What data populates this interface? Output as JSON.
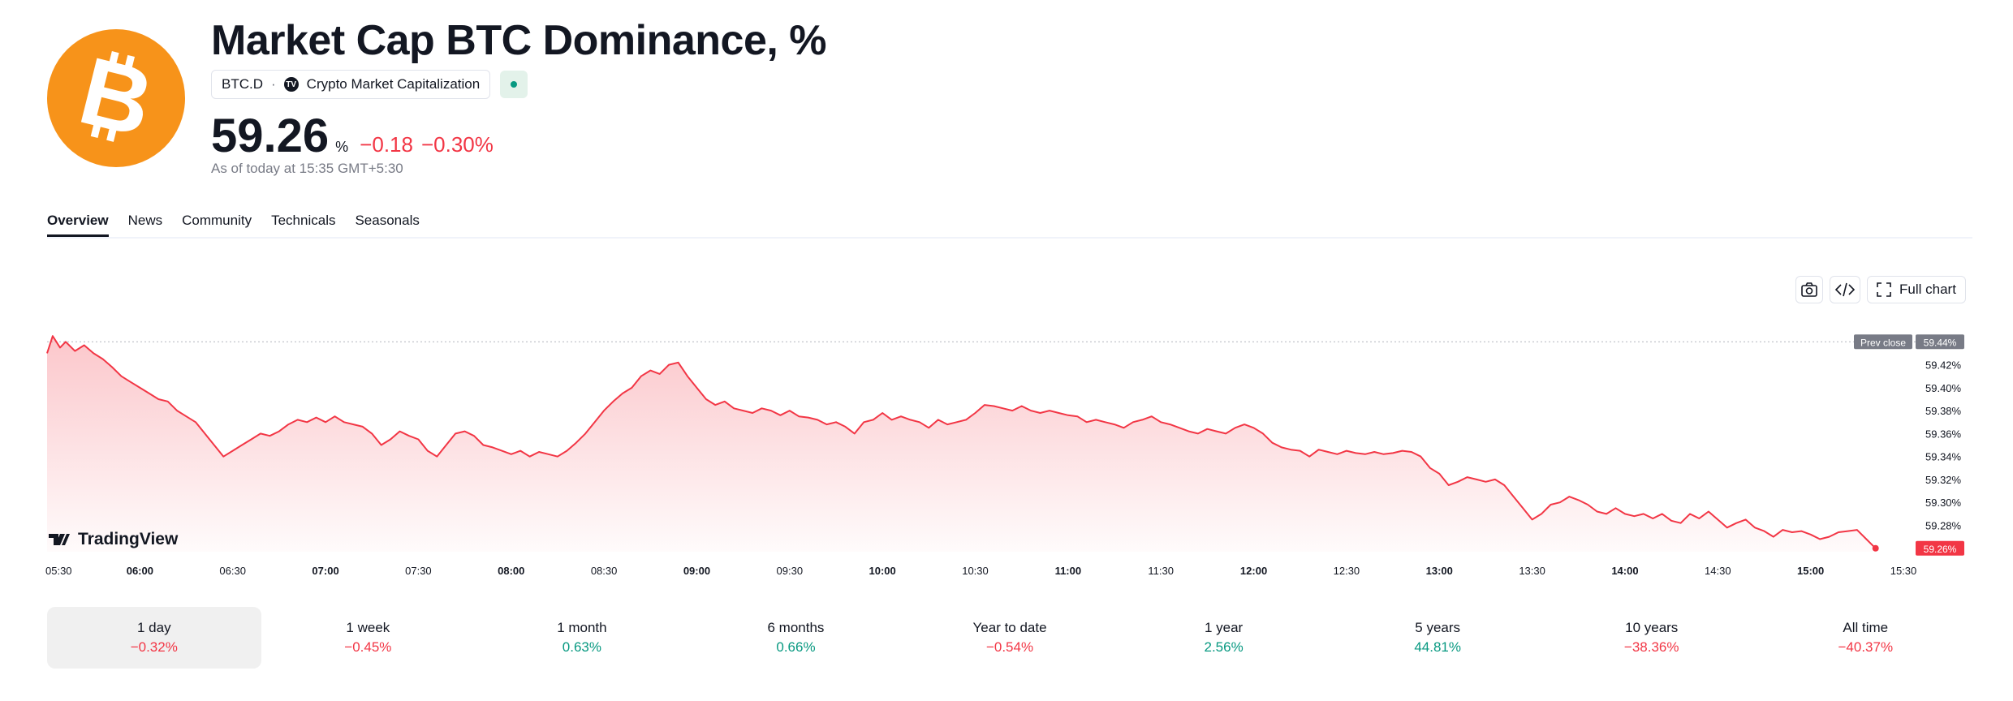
{
  "header": {
    "title": "Market Cap BTC Dominance, %",
    "symbol": "BTC.D",
    "separator": "·",
    "source_icon_text": "TV",
    "source": "Crypto Market Capitalization",
    "price": "59.26",
    "unit": "%",
    "change_abs": "−0.18",
    "change_pct": "−0.30%",
    "as_of": "As of today at 15:35 GMT+5:30"
  },
  "colors": {
    "accent": "#f7931a",
    "negative": "#f23645",
    "positive": "#089981"
  },
  "tabs": [
    "Overview",
    "News",
    "Community",
    "Technicals",
    "Seasonals"
  ],
  "toolbar": {
    "full_chart_label": "Full chart"
  },
  "chart_data": {
    "type": "area",
    "x_ticks": [
      "05:30",
      "06:00",
      "06:30",
      "07:00",
      "07:30",
      "08:00",
      "08:30",
      "09:00",
      "09:30",
      "10:00",
      "10:30",
      "11:00",
      "11:30",
      "12:00",
      "12:30",
      "13:00",
      "13:30",
      "14:00",
      "14:30",
      "15:00",
      "15:30"
    ],
    "bold_ticks": [
      "06:00",
      "07:00",
      "08:00",
      "09:00",
      "10:00",
      "11:00",
      "12:00",
      "13:00",
      "14:00",
      "15:00"
    ],
    "x_start_hours": 5.5,
    "y_ticks": [
      59.44,
      59.42,
      59.4,
      59.38,
      59.36,
      59.34,
      59.32,
      59.3,
      59.28
    ],
    "ylim": [
      59.257,
      59.448
    ],
    "prev_close": 59.44,
    "prev_close_label": "Prev close",
    "prev_close_text": "59.44%",
    "last_text": "59.26%",
    "watermark": "TradingView",
    "points": [
      [
        5.5,
        59.43
      ],
      [
        5.53,
        59.445
      ],
      [
        5.57,
        59.435
      ],
      [
        5.6,
        59.44
      ],
      [
        5.65,
        59.432
      ],
      [
        5.7,
        59.437
      ],
      [
        5.75,
        59.43
      ],
      [
        5.8,
        59.425
      ],
      [
        5.85,
        59.418
      ],
      [
        5.9,
        59.41
      ],
      [
        5.95,
        59.405
      ],
      [
        6.0,
        59.4
      ],
      [
        6.05,
        59.395
      ],
      [
        6.1,
        59.39
      ],
      [
        6.15,
        59.388
      ],
      [
        6.2,
        59.38
      ],
      [
        6.25,
        59.375
      ],
      [
        6.3,
        59.37
      ],
      [
        6.35,
        59.36
      ],
      [
        6.4,
        59.35
      ],
      [
        6.45,
        59.34
      ],
      [
        6.5,
        59.345
      ],
      [
        6.55,
        59.35
      ],
      [
        6.6,
        59.355
      ],
      [
        6.65,
        59.36
      ],
      [
        6.7,
        59.358
      ],
      [
        6.75,
        59.362
      ],
      [
        6.8,
        59.368
      ],
      [
        6.85,
        59.372
      ],
      [
        6.9,
        59.37
      ],
      [
        6.95,
        59.374
      ],
      [
        7.0,
        59.37
      ],
      [
        7.05,
        59.375
      ],
      [
        7.1,
        59.37
      ],
      [
        7.15,
        59.368
      ],
      [
        7.2,
        59.366
      ],
      [
        7.25,
        59.36
      ],
      [
        7.3,
        59.35
      ],
      [
        7.35,
        59.355
      ],
      [
        7.4,
        59.362
      ],
      [
        7.45,
        59.358
      ],
      [
        7.5,
        59.355
      ],
      [
        7.55,
        59.345
      ],
      [
        7.6,
        59.34
      ],
      [
        7.65,
        59.35
      ],
      [
        7.7,
        59.36
      ],
      [
        7.75,
        59.362
      ],
      [
        7.8,
        59.358
      ],
      [
        7.85,
        59.35
      ],
      [
        7.9,
        59.348
      ],
      [
        7.95,
        59.345
      ],
      [
        8.0,
        59.342
      ],
      [
        8.05,
        59.345
      ],
      [
        8.1,
        59.34
      ],
      [
        8.15,
        59.344
      ],
      [
        8.2,
        59.342
      ],
      [
        8.25,
        59.34
      ],
      [
        8.3,
        59.345
      ],
      [
        8.35,
        59.352
      ],
      [
        8.4,
        59.36
      ],
      [
        8.45,
        59.37
      ],
      [
        8.5,
        59.38
      ],
      [
        8.55,
        59.388
      ],
      [
        8.6,
        59.395
      ],
      [
        8.65,
        59.4
      ],
      [
        8.7,
        59.41
      ],
      [
        8.75,
        59.415
      ],
      [
        8.8,
        59.412
      ],
      [
        8.85,
        59.42
      ],
      [
        8.9,
        59.422
      ],
      [
        8.95,
        59.41
      ],
      [
        9.0,
        59.4
      ],
      [
        9.05,
        59.39
      ],
      [
        9.1,
        59.385
      ],
      [
        9.15,
        59.388
      ],
      [
        9.2,
        59.382
      ],
      [
        9.25,
        59.38
      ],
      [
        9.3,
        59.378
      ],
      [
        9.35,
        59.382
      ],
      [
        9.4,
        59.38
      ],
      [
        9.45,
        59.376
      ],
      [
        9.5,
        59.38
      ],
      [
        9.55,
        59.375
      ],
      [
        9.6,
        59.374
      ],
      [
        9.65,
        59.372
      ],
      [
        9.7,
        59.368
      ],
      [
        9.75,
        59.37
      ],
      [
        9.8,
        59.366
      ],
      [
        9.85,
        59.36
      ],
      [
        9.9,
        59.37
      ],
      [
        9.95,
        59.372
      ],
      [
        10.0,
        59.378
      ],
      [
        10.05,
        59.372
      ],
      [
        10.1,
        59.375
      ],
      [
        10.15,
        59.372
      ],
      [
        10.2,
        59.37
      ],
      [
        10.25,
        59.365
      ],
      [
        10.3,
        59.372
      ],
      [
        10.35,
        59.368
      ],
      [
        10.4,
        59.37
      ],
      [
        10.45,
        59.372
      ],
      [
        10.5,
        59.378
      ],
      [
        10.55,
        59.385
      ],
      [
        10.6,
        59.384
      ],
      [
        10.65,
        59.382
      ],
      [
        10.7,
        59.38
      ],
      [
        10.75,
        59.384
      ],
      [
        10.8,
        59.38
      ],
      [
        10.85,
        59.378
      ],
      [
        10.9,
        59.38
      ],
      [
        10.95,
        59.378
      ],
      [
        11.0,
        59.376
      ],
      [
        11.05,
        59.375
      ],
      [
        11.1,
        59.37
      ],
      [
        11.15,
        59.372
      ],
      [
        11.2,
        59.37
      ],
      [
        11.25,
        59.368
      ],
      [
        11.3,
        59.365
      ],
      [
        11.35,
        59.37
      ],
      [
        11.4,
        59.372
      ],
      [
        11.45,
        59.375
      ],
      [
        11.5,
        59.37
      ],
      [
        11.55,
        59.368
      ],
      [
        11.6,
        59.365
      ],
      [
        11.65,
        59.362
      ],
      [
        11.7,
        59.36
      ],
      [
        11.75,
        59.364
      ],
      [
        11.8,
        59.362
      ],
      [
        11.85,
        59.36
      ],
      [
        11.9,
        59.365
      ],
      [
        11.95,
        59.368
      ],
      [
        12.0,
        59.365
      ],
      [
        12.05,
        59.36
      ],
      [
        12.1,
        59.352
      ],
      [
        12.15,
        59.348
      ],
      [
        12.2,
        59.346
      ],
      [
        12.25,
        59.345
      ],
      [
        12.3,
        59.34
      ],
      [
        12.35,
        59.346
      ],
      [
        12.4,
        59.344
      ],
      [
        12.45,
        59.342
      ],
      [
        12.5,
        59.345
      ],
      [
        12.55,
        59.343
      ],
      [
        12.6,
        59.342
      ],
      [
        12.65,
        59.344
      ],
      [
        12.7,
        59.342
      ],
      [
        12.75,
        59.343
      ],
      [
        12.8,
        59.345
      ],
      [
        12.85,
        59.344
      ],
      [
        12.9,
        59.34
      ],
      [
        12.95,
        59.33
      ],
      [
        13.0,
        59.325
      ],
      [
        13.05,
        59.315
      ],
      [
        13.1,
        59.318
      ],
      [
        13.15,
        59.322
      ],
      [
        13.2,
        59.32
      ],
      [
        13.25,
        59.318
      ],
      [
        13.3,
        59.32
      ],
      [
        13.35,
        59.315
      ],
      [
        13.4,
        59.305
      ],
      [
        13.45,
        59.295
      ],
      [
        13.5,
        59.285
      ],
      [
        13.55,
        59.29
      ],
      [
        13.6,
        59.298
      ],
      [
        13.65,
        59.3
      ],
      [
        13.7,
        59.305
      ],
      [
        13.75,
        59.302
      ],
      [
        13.8,
        59.298
      ],
      [
        13.85,
        59.292
      ],
      [
        13.9,
        59.29
      ],
      [
        13.95,
        59.295
      ],
      [
        14.0,
        59.29
      ],
      [
        14.05,
        59.288
      ],
      [
        14.1,
        59.29
      ],
      [
        14.15,
        59.286
      ],
      [
        14.2,
        59.29
      ],
      [
        14.25,
        59.284
      ],
      [
        14.3,
        59.282
      ],
      [
        14.35,
        59.29
      ],
      [
        14.4,
        59.286
      ],
      [
        14.45,
        59.292
      ],
      [
        14.5,
        59.285
      ],
      [
        14.55,
        59.278
      ],
      [
        14.6,
        59.282
      ],
      [
        14.65,
        59.285
      ],
      [
        14.7,
        59.278
      ],
      [
        14.75,
        59.275
      ],
      [
        14.8,
        59.27
      ],
      [
        14.85,
        59.276
      ],
      [
        14.9,
        59.274
      ],
      [
        14.95,
        59.275
      ],
      [
        15.0,
        59.272
      ],
      [
        15.05,
        59.268
      ],
      [
        15.1,
        59.27
      ],
      [
        15.15,
        59.274
      ],
      [
        15.2,
        59.275
      ],
      [
        15.25,
        59.276
      ],
      [
        15.3,
        59.268
      ],
      [
        15.35,
        59.26
      ]
    ]
  },
  "periods": [
    {
      "label": "1 day",
      "value": "−0.32%",
      "sign": "neg"
    },
    {
      "label": "1 week",
      "value": "−0.45%",
      "sign": "neg"
    },
    {
      "label": "1 month",
      "value": "0.63%",
      "sign": "pos"
    },
    {
      "label": "6 months",
      "value": "0.66%",
      "sign": "pos"
    },
    {
      "label": "Year to date",
      "value": "−0.54%",
      "sign": "neg"
    },
    {
      "label": "1 year",
      "value": "2.56%",
      "sign": "pos"
    },
    {
      "label": "5 years",
      "value": "44.81%",
      "sign": "pos"
    },
    {
      "label": "10 years",
      "value": "−38.36%",
      "sign": "neg"
    },
    {
      "label": "All time",
      "value": "−40.37%",
      "sign": "neg"
    }
  ]
}
